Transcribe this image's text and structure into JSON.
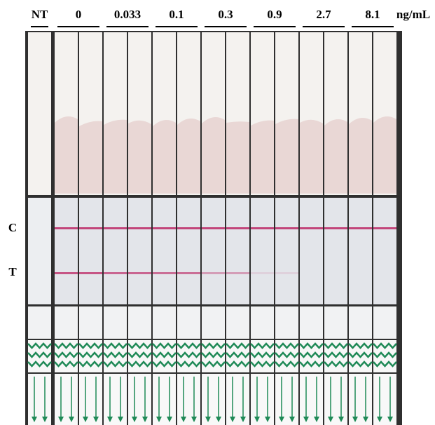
{
  "header": {
    "labels": [
      "NT",
      "0",
      "0.033",
      "0.1",
      "0.3",
      "0.9",
      "2.7",
      "8.1"
    ],
    "unit": "ng/mL"
  },
  "side_labels": {
    "control": "C",
    "test": "T"
  }
}
